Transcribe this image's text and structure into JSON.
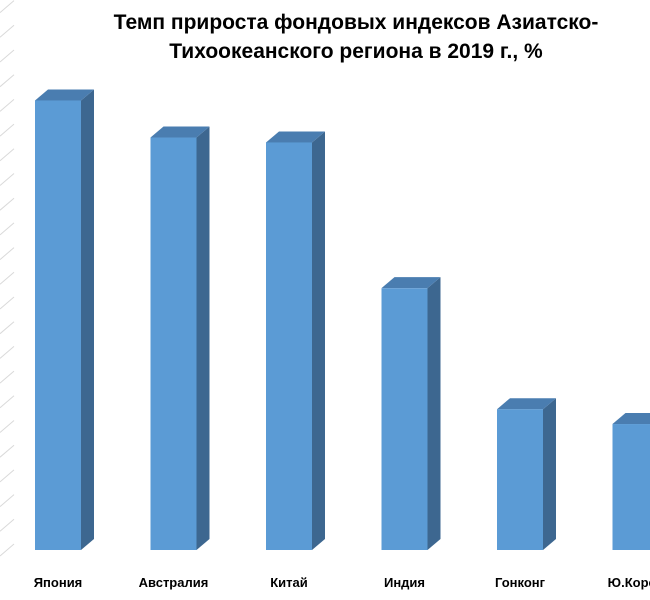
{
  "chart_data": {
    "type": "bar",
    "title_lines": [
      "Темп прироста фондовых индексов Азиатско-",
      "Тихоокеанского региона в 2019 г., %"
    ],
    "categories": [
      "Япония",
      "Австралия",
      "Китай",
      "Индия",
      "Гонконг",
      "Ю.Корея"
    ],
    "values": [
      18.2,
      16.7,
      16.5,
      10.6,
      5.7,
      5.1
    ],
    "ylim": [
      0,
      22
    ],
    "grid": true,
    "legend": "none",
    "three_d": true,
    "colors": {
      "bar_front": "#5B9BD5",
      "bar_side": "#3D6790",
      "bar_top": "#4A7DB0",
      "grid": "#D9D9D9"
    }
  }
}
